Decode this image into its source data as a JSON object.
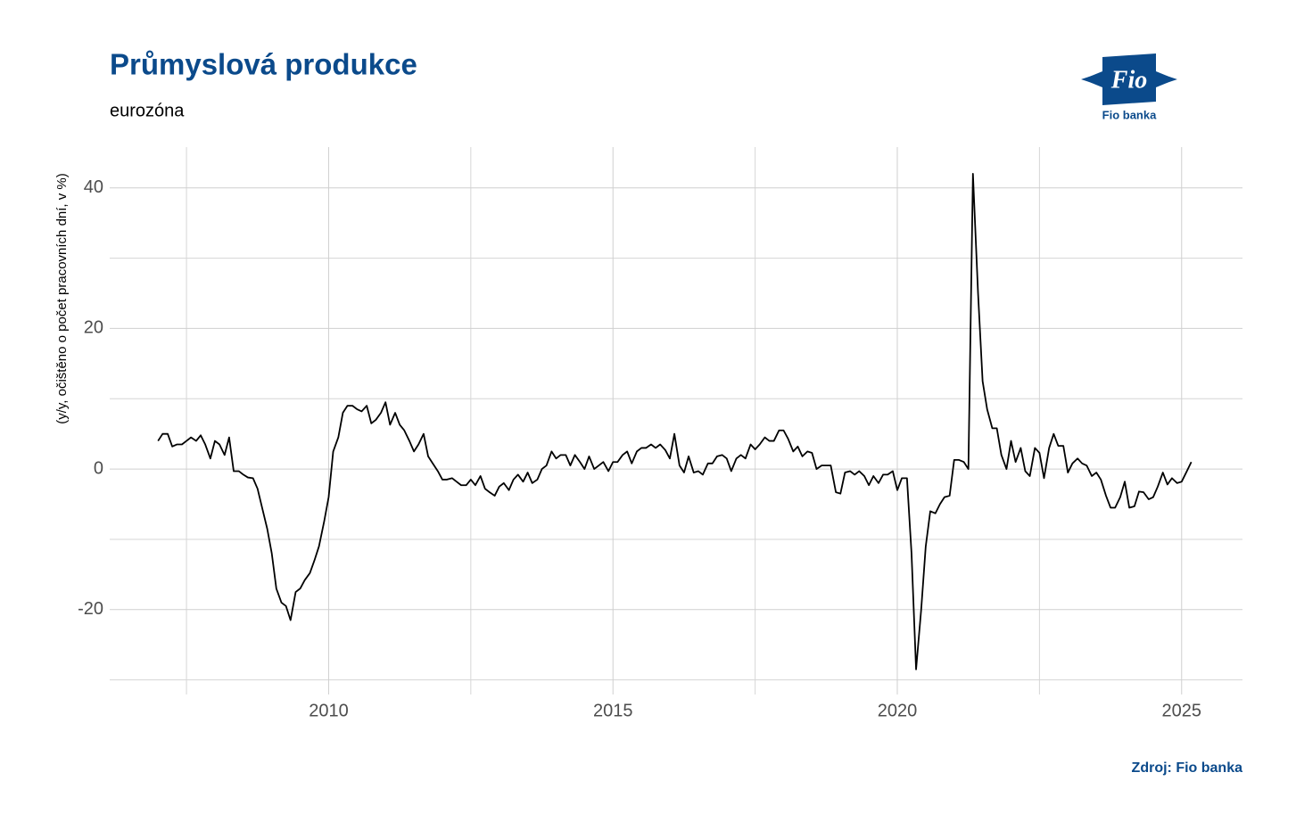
{
  "chart_data": {
    "type": "line",
    "title": "Průmyslová produkce",
    "subtitle": "eurozóna",
    "y_label": "(y/y, očištěno o počet pracovních dní, v %)",
    "source": "Zdroj: Fio banka",
    "logo": {
      "mark": "Fio",
      "name": "Fio banka"
    },
    "color": "#000000",
    "grid": true,
    "xlim": [
      2006.15,
      2026.07
    ],
    "ylim": [
      -30.3,
      45.8
    ],
    "xticks": [
      2010,
      2015,
      2020,
      2025
    ],
    "xminorticks": [
      2007.5,
      2012.5,
      2017.5,
      2022.5
    ],
    "yticks": [
      -20,
      0,
      20,
      40
    ],
    "yminorticks": [
      -30,
      -10,
      10,
      30
    ],
    "x": [
      2007,
      2007.08,
      2007.17,
      2007.25,
      2007.33,
      2007.42,
      2007.5,
      2007.58,
      2007.67,
      2007.75,
      2007.83,
      2007.92,
      2008,
      2008.08,
      2008.17,
      2008.25,
      2008.33,
      2008.42,
      2008.5,
      2008.58,
      2008.67,
      2008.75,
      2008.83,
      2008.92,
      2009,
      2009.08,
      2009.17,
      2009.25,
      2009.33,
      2009.42,
      2009.5,
      2009.58,
      2009.67,
      2009.75,
      2009.83,
      2009.92,
      2010,
      2010.08,
      2010.17,
      2010.25,
      2010.33,
      2010.42,
      2010.5,
      2010.58,
      2010.67,
      2010.75,
      2010.83,
      2010.92,
      2011,
      2011.08,
      2011.17,
      2011.25,
      2011.33,
      2011.42,
      2011.5,
      2011.58,
      2011.67,
      2011.75,
      2011.83,
      2011.92,
      2012,
      2012.08,
      2012.17,
      2012.25,
      2012.33,
      2012.42,
      2012.5,
      2012.58,
      2012.67,
      2012.75,
      2012.83,
      2012.92,
      2013,
      2013.08,
      2013.17,
      2013.25,
      2013.33,
      2013.42,
      2013.5,
      2013.58,
      2013.67,
      2013.75,
      2013.83,
      2013.92,
      2014,
      2014.08,
      2014.17,
      2014.25,
      2014.33,
      2014.42,
      2014.5,
      2014.58,
      2014.67,
      2014.75,
      2014.83,
      2014.92,
      2015,
      2015.08,
      2015.17,
      2015.25,
      2015.33,
      2015.42,
      2015.5,
      2015.58,
      2015.67,
      2015.75,
      2015.83,
      2015.92,
      2016,
      2016.08,
      2016.17,
      2016.25,
      2016.33,
      2016.42,
      2016.5,
      2016.58,
      2016.67,
      2016.75,
      2016.83,
      2016.92,
      2017,
      2017.08,
      2017.17,
      2017.25,
      2017.33,
      2017.42,
      2017.5,
      2017.58,
      2017.67,
      2017.75,
      2017.83,
      2017.92,
      2018,
      2018.08,
      2018.17,
      2018.25,
      2018.33,
      2018.42,
      2018.5,
      2018.58,
      2018.67,
      2018.75,
      2018.83,
      2018.92,
      2019,
      2019.08,
      2019.17,
      2019.25,
      2019.33,
      2019.42,
      2019.5,
      2019.58,
      2019.67,
      2019.75,
      2019.83,
      2019.92,
      2020,
      2020.08,
      2020.17,
      2020.25,
      2020.33,
      2020.42,
      2020.5,
      2020.58,
      2020.67,
      2020.75,
      2020.83,
      2020.92,
      2021,
      2021.08,
      2021.17,
      2021.25,
      2021.33,
      2021.42,
      2021.5,
      2021.58,
      2021.67,
      2021.75,
      2021.83,
      2021.92,
      2022,
      2022.08,
      2022.17,
      2022.25,
      2022.33,
      2022.42,
      2022.5,
      2022.58,
      2022.67,
      2022.75,
      2022.83,
      2022.92,
      2023,
      2023.08,
      2023.17,
      2023.25,
      2023.33,
      2023.42,
      2023.5,
      2023.58,
      2023.67,
      2023.75,
      2023.83,
      2023.92,
      2024,
      2024.08,
      2024.17,
      2024.25,
      2024.33,
      2024.42,
      2024.5,
      2024.58,
      2024.67,
      2024.75,
      2024.83,
      2024.92,
      2025,
      2025.08,
      2025.17
    ],
    "values": [
      4,
      5,
      5,
      3.2,
      3.5,
      3.5,
      4,
      4.5,
      4,
      4.8,
      3.5,
      1.5,
      4,
      3.5,
      2,
      4.5,
      -0.3,
      -0.3,
      -0.8,
      -1.2,
      -1.3,
      -2.8,
      -5.5,
      -8.5,
      -12,
      -17,
      -19,
      -19.5,
      -21.5,
      -17.5,
      -17,
      -15.8,
      -14.8,
      -13,
      -11,
      -7.5,
      -4,
      2.5,
      4.5,
      8,
      9,
      9,
      8.5,
      8.2,
      9,
      6.5,
      7,
      8,
      9.5,
      6.3,
      8,
      6.3,
      5.5,
      4,
      2.5,
      3.5,
      5,
      1.8,
      0.8,
      -0.3,
      -1.5,
      -1.5,
      -1.3,
      -1.8,
      -2.3,
      -2.3,
      -1.5,
      -2.3,
      -1,
      -2.8,
      -3.3,
      -3.8,
      -2.5,
      -2,
      -3,
      -1.5,
      -0.8,
      -1.8,
      -0.5,
      -2,
      -1.5,
      0,
      0.5,
      2.5,
      1.5,
      2,
      2,
      0.5,
      2,
      1,
      0,
      1.8,
      0,
      0.5,
      1,
      -0.3,
      1,
      1,
      2,
      2.5,
      0.8,
      2.5,
      3,
      3,
      3.5,
      3,
      3.5,
      2.7,
      1.5,
      5,
      0.5,
      -0.5,
      1.8,
      -0.5,
      -0.3,
      -0.8,
      0.8,
      0.8,
      1.8,
      2,
      1.5,
      -0.3,
      1.5,
      2,
      1.5,
      3.5,
      2.8,
      3.5,
      4.5,
      4,
      4,
      5.5,
      5.5,
      4.3,
      2.5,
      3.2,
      1.8,
      2.5,
      2.3,
      0,
      0.5,
      0.5,
      0.5,
      -3.3,
      -3.5,
      -0.5,
      -0.3,
      -0.8,
      -0.3,
      -1,
      -2.3,
      -1,
      -2,
      -0.8,
      -0.8,
      -0.3,
      -3,
      -1.3,
      -1.3,
      -12,
      -28.5,
      -20,
      -11,
      -6,
      -6.3,
      -5,
      -4,
      -3.8,
      1.3,
      1.3,
      1,
      0,
      42,
      25,
      12.5,
      8.5,
      5.8,
      5.8,
      2,
      0,
      4,
      1,
      3,
      -0.3,
      -1,
      3,
      2.3,
      -1.3,
      3,
      5,
      3.3,
      3.3,
      -0.5,
      0.8,
      1.5,
      0.8,
      0.5,
      -1,
      -0.5,
      -1.5,
      -3.8,
      -5.5,
      -5.5,
      -4,
      -1.8,
      -5.5,
      -5.3,
      -3.2,
      -3.3,
      -4.3,
      -4,
      -2.5,
      -0.5,
      -2.2,
      -1.3,
      -2,
      -1.8,
      -0.5,
      1
    ]
  }
}
